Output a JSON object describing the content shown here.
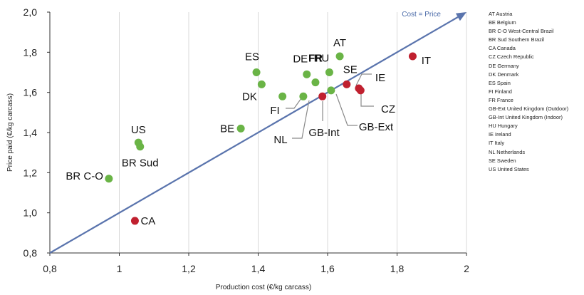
{
  "chart_data": {
    "type": "scatter",
    "xlabel": "Production cost (€/kg carcass)",
    "ylabel": "Price paid (€/kg carcass)",
    "xlim": [
      0.8,
      2.0
    ],
    "ylim": [
      0.8,
      2.0
    ],
    "x_ticks": [
      "0,8",
      "1",
      "1,2",
      "1,4",
      "1,6",
      "1,8",
      "2"
    ],
    "y_ticks": [
      "0,8",
      "1,0",
      "1,2",
      "1,4",
      "1,6",
      "1,8",
      "2,0"
    ],
    "grid": "vertical",
    "reference_line": {
      "label": "Cost = Price",
      "from": [
        0.8,
        0.8
      ],
      "to": [
        2.0,
        2.0
      ]
    },
    "colors": {
      "green": "#6ab446",
      "red": "#c0202f",
      "line": "#5a74ad",
      "line_label": "#4a6aa8"
    },
    "points": [
      {
        "label": "AT",
        "x": 1.635,
        "y": 1.78,
        "color": "green"
      },
      {
        "label": "BE",
        "x": 1.35,
        "y": 1.42,
        "color": "green"
      },
      {
        "label": "BR C-O",
        "x": 0.97,
        "y": 1.17,
        "color": "green"
      },
      {
        "label": "BR Sud",
        "x": 1.06,
        "y": 1.33,
        "color": "green"
      },
      {
        "label": "CA",
        "x": 1.045,
        "y": 0.96,
        "color": "red"
      },
      {
        "label": "CZ",
        "x": 1.695,
        "y": 1.61,
        "color": "red"
      },
      {
        "label": "DE",
        "x": 1.54,
        "y": 1.69,
        "color": "green"
      },
      {
        "label": "DK",
        "x": 1.41,
        "y": 1.64,
        "color": "green"
      },
      {
        "label": "ES",
        "x": 1.395,
        "y": 1.7,
        "color": "green"
      },
      {
        "label": "FI",
        "x": 1.47,
        "y": 1.58,
        "color": "green"
      },
      {
        "label": "FR",
        "x": 1.565,
        "y": 1.65,
        "color": "green",
        "bold": true
      },
      {
        "label": "GB-Ext",
        "x": 1.61,
        "y": 1.61,
        "color": "green"
      },
      {
        "label": "GB-Int",
        "x": 1.585,
        "y": 1.58,
        "color": "red"
      },
      {
        "label": "HU",
        "x": 1.605,
        "y": 1.7,
        "color": "green"
      },
      {
        "label": "IE",
        "x": 1.69,
        "y": 1.62,
        "color": "red"
      },
      {
        "label": "IT",
        "x": 1.845,
        "y": 1.78,
        "color": "red"
      },
      {
        "label": "NL",
        "x": 1.53,
        "y": 1.58,
        "color": "green"
      },
      {
        "label": "SE",
        "x": 1.655,
        "y": 1.64,
        "color": "red"
      },
      {
        "label": "US",
        "x": 1.055,
        "y": 1.35,
        "color": "green"
      }
    ],
    "legend": [
      "AT Austria",
      "BE Belgium",
      "BR C-O West-Central Brazil",
      "BR Sud Southern Brazil",
      "CA Canada",
      "CZ Czech Republic",
      "DE Germany",
      "DK Denmark",
      "ES Spain",
      "FI Finland",
      "FR France",
      "GB-Ext United Kingdom (Outdoor)",
      "GB-Int United Kingdom (Indoor)",
      "HU Hungary",
      "IE Ireland",
      "IT Italy",
      "NL Netherlands",
      "SE Sweden",
      "US United States"
    ]
  }
}
